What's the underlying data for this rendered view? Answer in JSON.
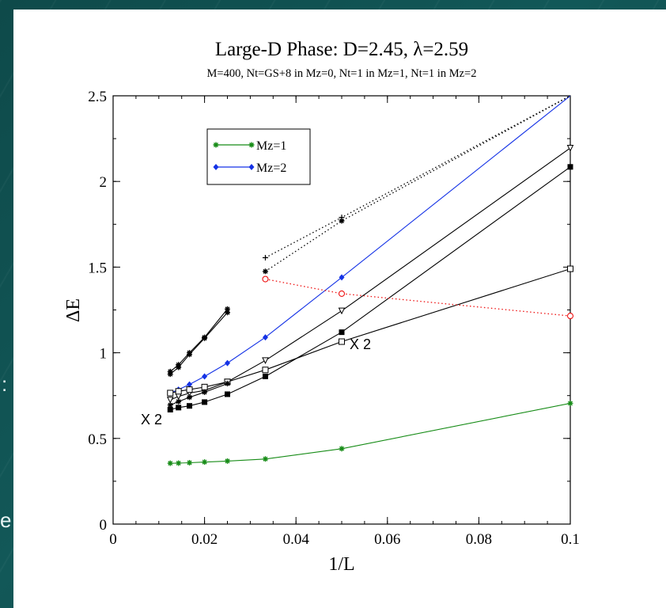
{
  "slide": {
    "background": "#0e4a4a",
    "edge_glyph_1": ":",
    "edge_glyph_2": "e"
  },
  "chart_data": {
    "type": "line",
    "title": "Large-D Phase: D=2.45, λ=2.59",
    "subtitle": "M=400, Nt=GS+8 in Mz=0, Nt=1 in Mz=1, Nt=1 in Mz=2",
    "xlabel": "1/L",
    "ylabel": "ΔE",
    "xlim": [
      0,
      0.1
    ],
    "ylim": [
      0,
      2.5
    ],
    "xticks": [
      "0",
      "0.02",
      "0.04",
      "0.06",
      "0.08",
      "0.1"
    ],
    "yticks": [
      "0",
      "0.5",
      "1",
      "1.5",
      "2",
      "2.5"
    ],
    "legend_position": "top-left",
    "grid": false,
    "annotations": [
      "X 2",
      "X 2"
    ],
    "series": [
      {
        "name": "Mz=1",
        "color": "#178c17",
        "line": "solid",
        "marker": "star",
        "points": [
          [
            0.0125,
            0.355
          ],
          [
            0.0143,
            0.356
          ],
          [
            0.0167,
            0.358
          ],
          [
            0.02,
            0.362
          ],
          [
            0.025,
            0.368
          ],
          [
            0.0333,
            0.38
          ],
          [
            0.05,
            0.44
          ],
          [
            0.1,
            0.705
          ]
        ]
      },
      {
        "name": "Mz=2",
        "color": "#1432e6",
        "line": "solid",
        "marker": "diamond",
        "points": [
          [
            0.0125,
            0.765
          ],
          [
            0.0143,
            0.785
          ],
          [
            0.0167,
            0.815
          ],
          [
            0.02,
            0.862
          ],
          [
            0.025,
            0.94
          ],
          [
            0.0333,
            1.09
          ],
          [
            0.05,
            1.44
          ],
          [
            0.1,
            2.5
          ]
        ]
      },
      {
        "color": "#000000",
        "line": "solid",
        "marker": "star",
        "points": [
          [
            0.0125,
            0.89
          ],
          [
            0.0143,
            0.93
          ],
          [
            0.0167,
            1.0
          ],
          [
            0.02,
            1.09
          ],
          [
            0.025,
            1.255
          ]
        ]
      },
      {
        "color": "#000000",
        "line": "solid",
        "marker": "star",
        "points": [
          [
            0.0125,
            0.875
          ],
          [
            0.0143,
            0.915
          ],
          [
            0.0167,
            0.99
          ],
          [
            0.02,
            1.085
          ],
          [
            0.025,
            1.235
          ]
        ]
      },
      {
        "color": "#000000",
        "line": "solid",
        "marker": "triangle-down",
        "points": [
          [
            0.0125,
            0.725
          ],
          [
            0.0143,
            0.745
          ],
          [
            0.0167,
            0.765
          ],
          [
            0.02,
            0.78
          ],
          [
            0.025,
            0.83
          ],
          [
            0.0333,
            0.955
          ],
          [
            0.05,
            1.245
          ],
          [
            0.1,
            2.195
          ]
        ]
      },
      {
        "color": "#000000",
        "line": "solid",
        "marker": "square-open",
        "points": [
          [
            0.0125,
            0.765
          ],
          [
            0.0143,
            0.775
          ],
          [
            0.0167,
            0.785
          ],
          [
            0.02,
            0.8
          ],
          [
            0.025,
            0.83
          ],
          [
            0.0333,
            0.9
          ],
          [
            0.05,
            1.065
          ],
          [
            0.1,
            1.49
          ]
        ]
      },
      {
        "color": "#000000",
        "line": "solid",
        "marker": "star",
        "points": [
          [
            0.0125,
            0.695
          ],
          [
            0.0143,
            0.715
          ],
          [
            0.0167,
            0.74
          ],
          [
            0.02,
            0.77
          ],
          [
            0.025,
            0.82
          ]
        ]
      },
      {
        "color": "#000000",
        "line": "solid",
        "marker": "square",
        "points": [
          [
            0.0125,
            0.668
          ],
          [
            0.0143,
            0.68
          ],
          [
            0.0167,
            0.69
          ],
          [
            0.02,
            0.712
          ],
          [
            0.025,
            0.758
          ],
          [
            0.0333,
            0.862
          ],
          [
            0.05,
            1.12
          ],
          [
            0.1,
            2.085
          ]
        ]
      },
      {
        "color": "#000000",
        "line": "dotted",
        "marker": "plus",
        "points": [
          [
            0.0333,
            1.555
          ],
          [
            0.05,
            1.79
          ],
          [
            0.1,
            2.5
          ]
        ]
      },
      {
        "color": "#000000",
        "line": "dotted",
        "marker": "star",
        "points": [
          [
            0.0333,
            1.475
          ],
          [
            0.05,
            1.77
          ],
          [
            0.1,
            2.5
          ]
        ]
      },
      {
        "color": "#ee1111",
        "line": "dotted",
        "marker": "circle-open",
        "points": [
          [
            0.0333,
            1.43
          ],
          [
            0.05,
            1.345
          ],
          [
            0.1,
            1.215
          ]
        ]
      }
    ]
  }
}
